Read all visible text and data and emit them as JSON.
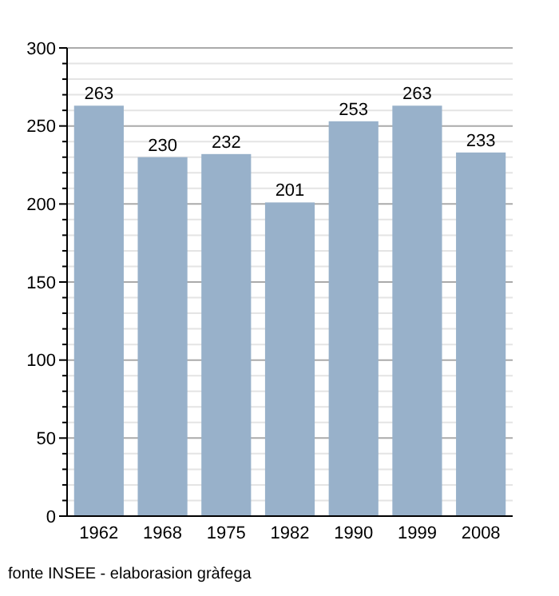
{
  "chart_data": {
    "type": "bar",
    "categories": [
      "1962",
      "1968",
      "1975",
      "1982",
      "1990",
      "1999",
      "2008"
    ],
    "values": [
      263,
      230,
      232,
      201,
      253,
      263,
      233
    ],
    "color": "#98b1ca",
    "data_labels": true,
    "ylim": [
      0,
      300
    ],
    "yticks": [
      0,
      {
        "value": 10,
        "label": null
      },
      {
        "value": 20,
        "label": null
      },
      {
        "value": 30,
        "label": null
      },
      {
        "value": 40,
        "label": null
      },
      50,
      {
        "value": 60,
        "label": null
      },
      {
        "value": 70,
        "label": null
      },
      {
        "value": 80,
        "label": null
      },
      {
        "value": 90,
        "label": null
      },
      100,
      {
        "value": 110,
        "label": null
      },
      {
        "value": 120,
        "label": null
      },
      {
        "value": 130,
        "label": null
      },
      {
        "value": 140,
        "label": null
      },
      150,
      {
        "value": 160,
        "label": null
      },
      {
        "value": 170,
        "label": null
      },
      {
        "value": 180,
        "label": null
      },
      {
        "value": 190,
        "label": null
      },
      200,
      {
        "value": 210,
        "label": null
      },
      {
        "value": 220,
        "label": null
      },
      {
        "value": 230,
        "label": null
      },
      {
        "value": 240,
        "label": null
      },
      250,
      {
        "value": 260,
        "label": null
      },
      {
        "value": 270,
        "label": null
      },
      {
        "value": 280,
        "label": null
      },
      {
        "value": 290,
        "label": null
      },
      300
    ],
    "grid": true,
    "annotations": [
      "fonte INSEE - elaborasion gràfega"
    ]
  }
}
